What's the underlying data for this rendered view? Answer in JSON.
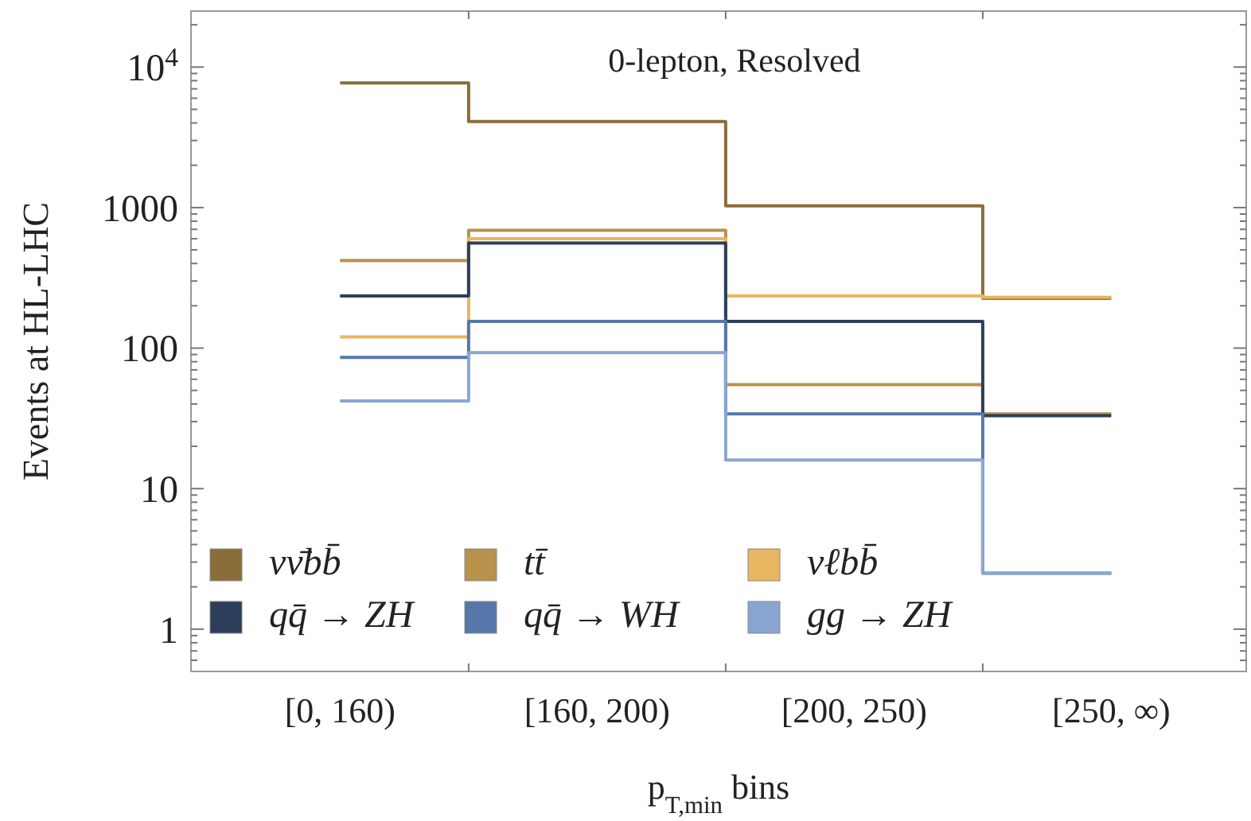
{
  "chart_data": {
    "type": "step",
    "title": "0-lepton, Resolved",
    "xlabel": "p$_{T,min}$ bins",
    "ylabel": "Events at HL-LHC",
    "categories": [
      "[0, 160)",
      "[160, 200)",
      "[200, 250)",
      "[250, ∞)"
    ],
    "series": [
      {
        "name": "νν̄bb̄",
        "color": "#8b6d3a",
        "values": [
          7700,
          4100,
          1030,
          226
        ]
      },
      {
        "name": "tt̄",
        "color": "#b8914a",
        "values": [
          420,
          690,
          55,
          34
        ]
      },
      {
        "name": "νℓbb̄",
        "color": "#e8b560",
        "values": [
          120,
          600,
          235,
          230
        ]
      },
      {
        "name": "qq̄ → ZH",
        "color": "#2d3e5a",
        "values": [
          235,
          560,
          155,
          33
        ]
      },
      {
        "name": "qq̄ → WH",
        "color": "#5577aa",
        "values": [
          86,
          155,
          34,
          2.5
        ]
      },
      {
        "name": "gg → ZH",
        "color": "#8aa6d0",
        "values": [
          42,
          93,
          16,
          2.5
        ]
      }
    ],
    "log": true,
    "ylim": [
      0.5,
      25000
    ],
    "yticks": [
      {
        "value": 0.6,
        "label": null
      },
      {
        "value": 0.7,
        "label": null
      },
      {
        "value": 0.8,
        "label": null
      },
      {
        "value": 0.9,
        "label": null
      },
      1,
      {
        "value": 2,
        "label": null
      },
      {
        "value": 3,
        "label": null
      },
      {
        "value": 4,
        "label": null
      },
      {
        "value": 5,
        "label": null
      },
      {
        "value": 6,
        "label": null
      },
      {
        "value": 7,
        "label": null
      },
      {
        "value": 8,
        "label": null
      },
      {
        "value": 9,
        "label": null
      },
      10,
      {
        "value": 20,
        "label": null
      },
      {
        "value": 30,
        "label": null
      },
      {
        "value": 40,
        "label": null
      },
      {
        "value": 50,
        "label": null
      },
      {
        "value": 60,
        "label": null
      },
      {
        "value": 70,
        "label": null
      },
      {
        "value": 80,
        "label": null
      },
      {
        "value": 90,
        "label": null
      },
      100,
      {
        "value": 200,
        "label": null
      },
      {
        "value": 300,
        "label": null
      },
      {
        "value": 400,
        "label": null
      },
      {
        "value": 500,
        "label": null
      },
      {
        "value": 600,
        "label": null
      },
      {
        "value": 700,
        "label": null
      },
      {
        "value": 800,
        "label": null
      },
      {
        "value": 900,
        "label": null
      },
      1000,
      {
        "value": 2000,
        "label": null
      },
      {
        "value": 3000,
        "label": null
      },
      {
        "value": 4000,
        "label": null
      },
      {
        "value": 5000,
        "label": null
      },
      {
        "value": 6000,
        "label": null
      },
      {
        "value": 7000,
        "label": null
      },
      {
        "value": 8000,
        "label": null
      },
      {
        "value": 9000,
        "label": null
      },
      {
        "value": 10000,
        "label": "10$^{4}$"
      },
      {
        "value": 20000,
        "label": null
      }
    ],
    "grid": false,
    "legend": "bottom left",
    "line_style": "solid"
  }
}
